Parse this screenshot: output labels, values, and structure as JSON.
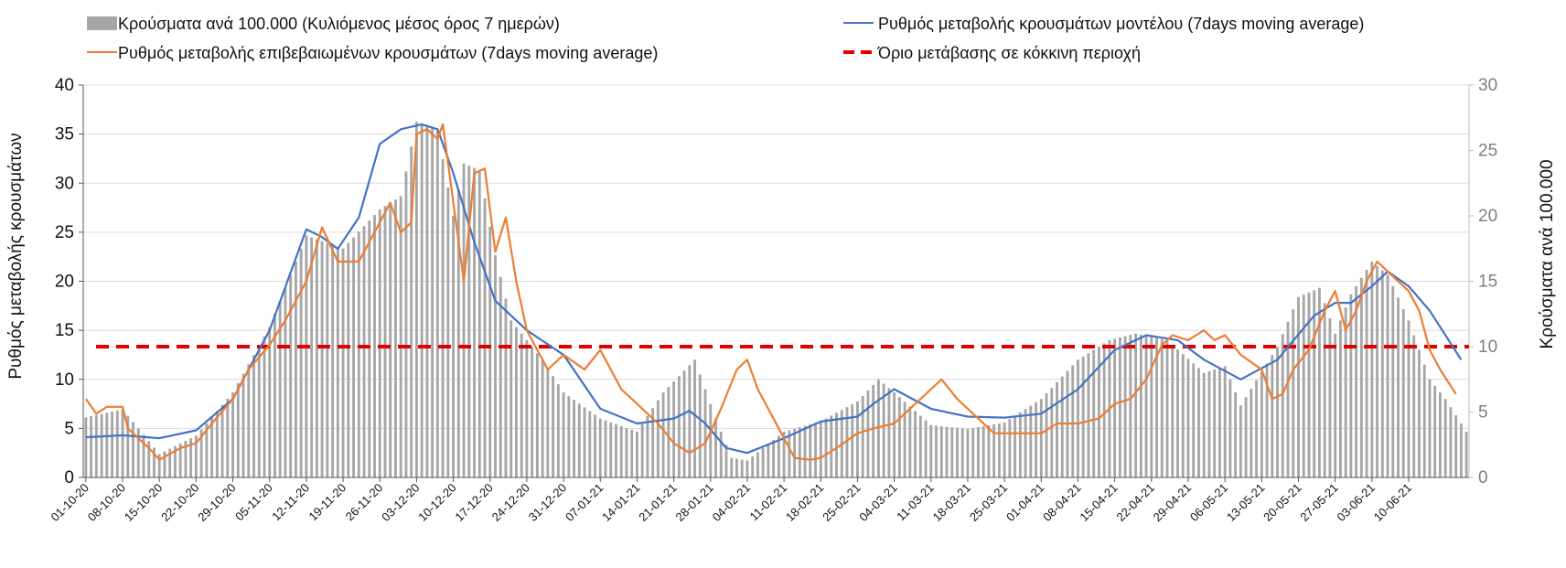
{
  "chart_data": {
    "type": "bar+line",
    "title": "",
    "ylabel_left": "Ρυθμός μεταβολής κρουσμάτων",
    "ylabel_right": "Κρούσματα ανά 100.000",
    "ylim_left": [
      0,
      40
    ],
    "ylim_right": [
      0,
      30
    ],
    "yticks_left": [
      0,
      5,
      10,
      15,
      20,
      25,
      30,
      35,
      40
    ],
    "yticks_right": [
      0,
      5,
      10,
      15,
      20,
      25,
      30
    ],
    "grid": true,
    "x_start_date": "01-10-20",
    "n_days": 264,
    "xtick_labels": [
      "01-10-20",
      "08-10-20",
      "15-10-20",
      "22-10-20",
      "29-10-20",
      "05-11-20",
      "12-11-20",
      "19-11-20",
      "26-11-20",
      "03-12-20",
      "10-12-20",
      "17-12-20",
      "24-12-20",
      "31-12-20",
      "07-01-21",
      "14-01-21",
      "21-01-21",
      "28-01-21",
      "04-02-21",
      "11-02-21",
      "18-02-21",
      "25-02-21",
      "04-03-21",
      "11-03-21",
      "18-03-21",
      "25-03-21",
      "01-04-21",
      "08-04-21",
      "15-04-21",
      "22-04-21",
      "29-04-21",
      "06-05-21",
      "13-05-21",
      "20-05-21",
      "27-05-21",
      "03-06-21",
      "10-06-21"
    ],
    "legend": {
      "placement": "top",
      "items": [
        {
          "name": "Κρούσματα ανά 100.000 (Κυλιόμενος μέσος όρος 7 ημερών)",
          "kind": "bar",
          "color": "#a6a6a6"
        },
        {
          "name": "Ρυθμός μεταβολής κρουσμάτων μοντέλου (7days moving average)",
          "kind": "line",
          "color": "#4472c4"
        },
        {
          "name": "Ρυθμός μεταβολής επιβεβαιωμένων κρουσμάτων (7days moving average)",
          "kind": "line",
          "color": "#ed7d31"
        },
        {
          "name": "Όριο μετάβασης σε κόκκινη περιοχή",
          "kind": "dashed",
          "color": "#e00000"
        }
      ]
    },
    "series": [
      {
        "name": "Κρούσματα ανά 100.000 (Κυλιόμενος μέσος όρος 7 ημερών)",
        "type": "bar",
        "axis": "right",
        "color": "#a6a6a6",
        "key_points": [
          [
            0,
            4.6
          ],
          [
            7,
            5.2
          ],
          [
            14,
            1.8
          ],
          [
            21,
            3.2
          ],
          [
            28,
            6.5
          ],
          [
            35,
            11.5
          ],
          [
            42,
            18.5
          ],
          [
            49,
            17.5
          ],
          [
            56,
            20.5
          ],
          [
            60,
            21.5
          ],
          [
            63,
            27.2
          ],
          [
            67,
            26.5
          ],
          [
            70,
            20
          ],
          [
            72,
            24
          ],
          [
            75,
            23.5
          ],
          [
            78,
            17
          ],
          [
            81,
            12
          ],
          [
            84,
            10.5
          ],
          [
            87,
            9
          ],
          [
            91,
            6.5
          ],
          [
            98,
            4.5
          ],
          [
            105,
            3.5
          ],
          [
            110,
            6.5
          ],
          [
            116,
            9
          ],
          [
            120,
            4.5
          ],
          [
            123,
            1.5
          ],
          [
            126,
            1.3
          ],
          [
            133,
            3.5
          ],
          [
            140,
            4.3
          ],
          [
            147,
            5.8
          ],
          [
            151,
            7.5
          ],
          [
            154,
            6.5
          ],
          [
            161,
            4
          ],
          [
            168,
            3.7
          ],
          [
            175,
            4.2
          ],
          [
            182,
            6
          ],
          [
            189,
            9
          ],
          [
            195,
            10.5
          ],
          [
            200,
            11
          ],
          [
            206,
            10.5
          ],
          [
            213,
            8
          ],
          [
            217,
            8.5
          ],
          [
            220,
            5.5
          ],
          [
            227,
            10
          ],
          [
            231,
            13.8
          ],
          [
            235,
            14.5
          ],
          [
            238,
            11
          ],
          [
            241,
            14
          ],
          [
            245,
            16.5
          ],
          [
            248,
            15.5
          ],
          [
            252,
            12
          ],
          [
            256,
            7.5
          ],
          [
            259,
            6
          ],
          [
            263,
            3.5
          ]
        ]
      },
      {
        "name": "Ρυθμός μεταβολής κρουσμάτων μοντέλου (7days moving average)",
        "type": "line",
        "axis": "left",
        "color": "#4472c4",
        "key_points": [
          [
            0,
            4.1
          ],
          [
            7,
            4.3
          ],
          [
            14,
            4
          ],
          [
            21,
            4.8
          ],
          [
            28,
            8
          ],
          [
            35,
            15
          ],
          [
            42,
            25.3
          ],
          [
            45,
            24.5
          ],
          [
            48,
            23.3
          ],
          [
            52,
            26.5
          ],
          [
            56,
            34
          ],
          [
            60,
            35.5
          ],
          [
            64,
            36
          ],
          [
            67,
            35.5
          ],
          [
            70,
            31
          ],
          [
            74,
            24
          ],
          [
            78,
            18
          ],
          [
            84,
            15
          ],
          [
            91,
            12.5
          ],
          [
            98,
            7
          ],
          [
            105,
            5.5
          ],
          [
            112,
            6
          ],
          [
            115,
            6.8
          ],
          [
            118,
            5.5
          ],
          [
            122,
            3
          ],
          [
            126,
            2.5
          ],
          [
            133,
            4
          ],
          [
            140,
            5.7
          ],
          [
            147,
            6.2
          ],
          [
            150,
            7.5
          ],
          [
            154,
            9
          ],
          [
            161,
            7
          ],
          [
            168,
            6.2
          ],
          [
            175,
            6.1
          ],
          [
            182,
            6.5
          ],
          [
            189,
            9
          ],
          [
            196,
            13
          ],
          [
            202,
            14.5
          ],
          [
            208,
            14
          ],
          [
            213,
            12
          ],
          [
            220,
            10
          ],
          [
            227,
            12
          ],
          [
            234,
            16.5
          ],
          [
            238,
            17.8
          ],
          [
            241,
            17.8
          ],
          [
            245,
            19.5
          ],
          [
            248,
            21
          ],
          [
            252,
            19.5
          ],
          [
            256,
            17
          ],
          [
            262,
            12
          ],
          [
            265,
            10
          ],
          [
            270,
            8
          ],
          [
            276,
            5.5
          ],
          [
            280,
            4
          ],
          [
            286,
            3
          ]
        ]
      },
      {
        "name": "Ρυθμός μεταβολής επιβεβαιωμένων κρουσμάτων (7days moving average)",
        "type": "line",
        "axis": "left",
        "color": "#ed7d31",
        "key_points": [
          [
            0,
            8
          ],
          [
            2,
            6.5
          ],
          [
            4,
            7.2
          ],
          [
            7,
            7.2
          ],
          [
            8,
            5
          ],
          [
            12,
            3
          ],
          [
            14,
            1.8
          ],
          [
            18,
            3
          ],
          [
            21,
            3.5
          ],
          [
            24,
            5.5
          ],
          [
            28,
            8
          ],
          [
            31,
            11
          ],
          [
            35,
            13.5
          ],
          [
            38,
            16
          ],
          [
            42,
            20
          ],
          [
            45,
            25.5
          ],
          [
            48,
            22
          ],
          [
            52,
            22
          ],
          [
            56,
            26
          ],
          [
            58,
            28
          ],
          [
            60,
            25
          ],
          [
            62,
            26
          ],
          [
            63,
            35
          ],
          [
            65,
            35.5
          ],
          [
            67,
            34.5
          ],
          [
            68,
            36
          ],
          [
            70,
            28
          ],
          [
            72,
            20
          ],
          [
            74,
            31
          ],
          [
            76,
            31.5
          ],
          [
            78,
            23
          ],
          [
            80,
            26.5
          ],
          [
            82,
            20
          ],
          [
            84,
            15
          ],
          [
            86,
            13
          ],
          [
            88,
            11
          ],
          [
            91,
            12.5
          ],
          [
            95,
            11
          ],
          [
            98,
            13
          ],
          [
            102,
            9
          ],
          [
            105,
            7.5
          ],
          [
            109,
            5.5
          ],
          [
            112,
            3.5
          ],
          [
            115,
            2.5
          ],
          [
            118,
            3.5
          ],
          [
            121,
            7
          ],
          [
            124,
            11
          ],
          [
            126,
            12
          ],
          [
            128,
            9
          ],
          [
            131,
            6
          ],
          [
            133,
            4
          ],
          [
            135,
            2
          ],
          [
            138,
            1.8
          ],
          [
            140,
            2
          ],
          [
            143,
            3
          ],
          [
            147,
            4.5
          ],
          [
            150,
            5
          ],
          [
            154,
            5.5
          ],
          [
            157,
            7
          ],
          [
            161,
            9
          ],
          [
            163,
            10
          ],
          [
            166,
            8
          ],
          [
            170,
            6
          ],
          [
            173,
            4.5
          ],
          [
            177,
            4.5
          ],
          [
            182,
            4.5
          ],
          [
            185,
            5.5
          ],
          [
            189,
            5.5
          ],
          [
            193,
            6
          ],
          [
            196,
            7.5
          ],
          [
            199,
            8
          ],
          [
            202,
            10
          ],
          [
            205,
            13.5
          ],
          [
            207,
            14.5
          ],
          [
            210,
            14
          ],
          [
            213,
            15
          ],
          [
            215,
            14
          ],
          [
            217,
            14.5
          ],
          [
            220,
            12.5
          ],
          [
            224,
            11
          ],
          [
            226,
            8
          ],
          [
            228,
            8.5
          ],
          [
            230,
            11
          ],
          [
            233,
            13
          ],
          [
            236,
            17
          ],
          [
            238,
            19
          ],
          [
            240,
            15
          ],
          [
            242,
            17
          ],
          [
            244,
            20
          ],
          [
            246,
            22
          ],
          [
            248,
            21
          ],
          [
            250,
            20
          ],
          [
            252,
            19
          ],
          [
            254,
            17
          ],
          [
            256,
            13
          ],
          [
            258,
            11
          ],
          [
            261,
            8.5
          ],
          [
            264,
            9
          ],
          [
            267,
            9.5
          ],
          [
            270,
            8
          ],
          [
            273,
            7.5
          ],
          [
            276,
            5.5
          ],
          [
            279,
            4
          ]
        ]
      },
      {
        "name": "Όριο μετάβασης σε κόκκινη περιοχή",
        "type": "line",
        "style": "dashed",
        "axis": "right",
        "color": "#e00000",
        "value": 10
      }
    ]
  }
}
